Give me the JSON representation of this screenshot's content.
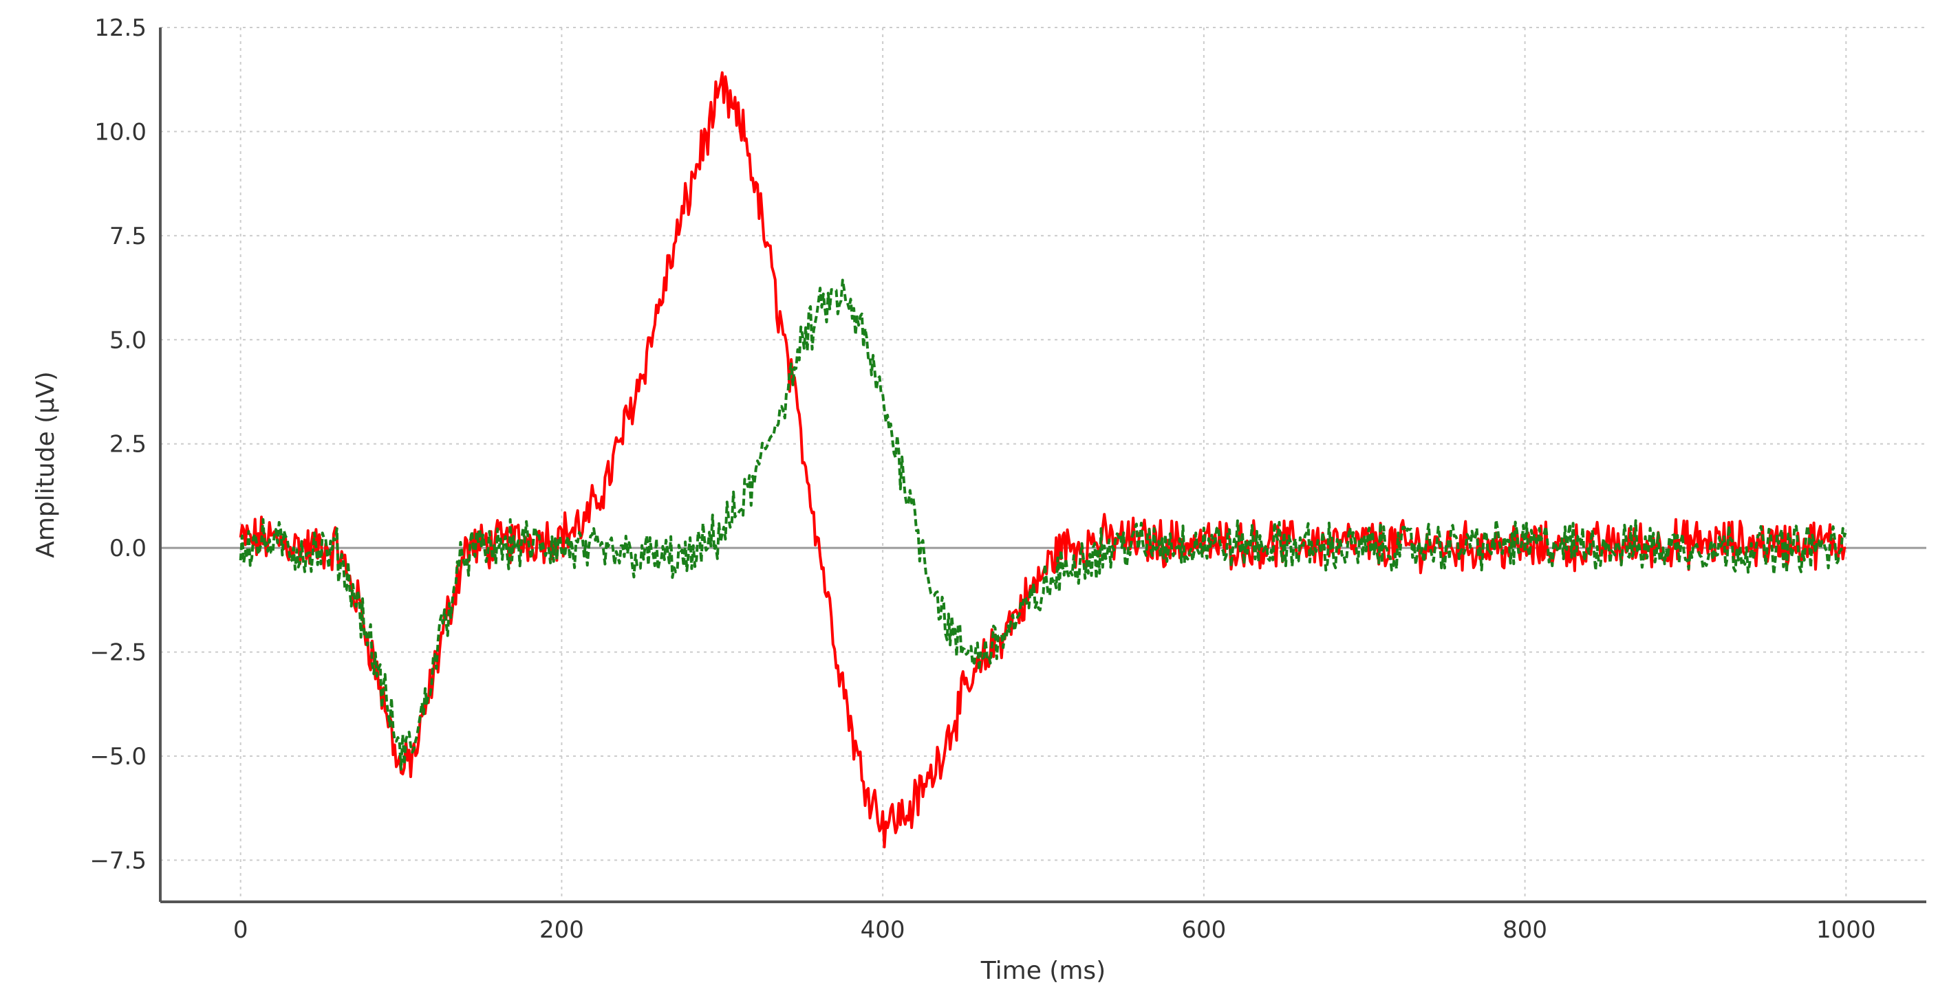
{
  "chart_data": {
    "type": "line",
    "xlabel": "Time (ms)",
    "ylabel": "Amplitude (μV)",
    "xlim": [
      -50,
      1050
    ],
    "ylim": [
      -8.5,
      12.5
    ],
    "x_ticks": [
      0,
      200,
      400,
      600,
      800,
      1000
    ],
    "x_tick_labels": [
      "0",
      "200",
      "400",
      "600",
      "800",
      "1000"
    ],
    "y_ticks": [
      -7.5,
      -5.0,
      -2.5,
      0.0,
      2.5,
      5.0,
      7.5,
      10.0,
      12.5
    ],
    "y_tick_labels": [
      "−7.5",
      "−5.0",
      "−2.5",
      "0.0",
      "2.5",
      "5.0",
      "7.5",
      "10.0",
      "12.5"
    ],
    "grid": true,
    "zero_line": 0,
    "series": [
      {
        "color": "#ff0000",
        "line_style": "solid",
        "noise": 0.45,
        "x": [
          0,
          20,
          40,
          60,
          75,
          90,
          100,
          110,
          125,
          140,
          160,
          180,
          200,
          215,
          230,
          250,
          270,
          285,
          300,
          315,
          330,
          350,
          370,
          385,
          400,
          415,
          430,
          450,
          470,
          490,
          510,
          540,
          600,
          700,
          800,
          900,
          1000
        ],
        "y": [
          0.2,
          0.2,
          0.0,
          0.0,
          -1.5,
          -3.8,
          -5.4,
          -4.8,
          -2.2,
          0.0,
          0.1,
          0.2,
          0.3,
          0.6,
          1.8,
          4.2,
          7.2,
          9.3,
          11.0,
          9.8,
          6.8,
          2.5,
          -2.2,
          -5.2,
          -6.6,
          -6.4,
          -5.5,
          -3.6,
          -2.3,
          -1.2,
          0.0,
          0.2,
          0.1,
          0.1,
          0.0,
          0.1,
          0.1
        ]
      },
      {
        "color": "#1a7f1a",
        "line_style": "dashed",
        "noise": 0.45,
        "x": [
          0,
          20,
          40,
          60,
          75,
          90,
          100,
          110,
          125,
          140,
          160,
          180,
          200,
          220,
          250,
          280,
          300,
          310,
          320,
          335,
          350,
          365,
          375,
          385,
          400,
          415,
          430,
          445,
          460,
          480,
          500,
          520,
          550,
          600,
          700,
          800,
          900,
          1000
        ],
        "y": [
          0.1,
          0.1,
          -0.1,
          -0.1,
          -1.5,
          -3.6,
          -5.0,
          -4.5,
          -2.0,
          -0.1,
          0.0,
          0.1,
          0.0,
          -0.1,
          -0.2,
          -0.3,
          0.4,
          0.9,
          1.6,
          3.2,
          4.9,
          5.9,
          6.0,
          5.4,
          3.5,
          1.5,
          -0.8,
          -2.3,
          -2.6,
          -1.9,
          -1.0,
          -0.3,
          0.1,
          0.1,
          0.0,
          0.1,
          0.0,
          0.0
        ]
      }
    ]
  }
}
